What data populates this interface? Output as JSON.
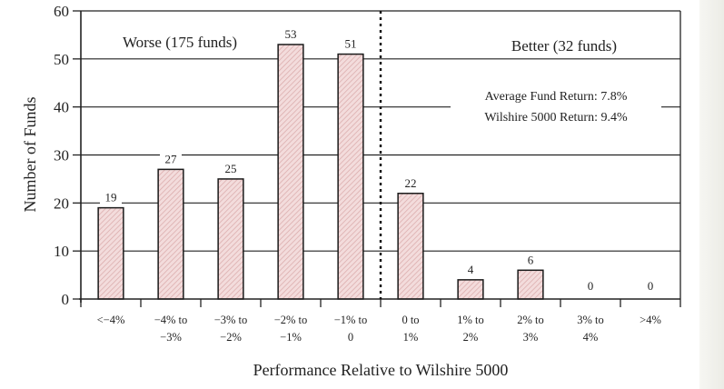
{
  "chart_data": {
    "type": "bar",
    "title": "",
    "xlabel": "Performance Relative to Wilshire 5000",
    "ylabel": "Number of Funds",
    "ylim": [
      0,
      60
    ],
    "yticks": [
      "0",
      "10",
      "20",
      "30",
      "40",
      "50",
      "60"
    ],
    "ytick_values": [
      0,
      10,
      20,
      30,
      40,
      50,
      60
    ],
    "grid": true,
    "categories": [
      [
        "<−4%"
      ],
      [
        "−4% to",
        "−3%"
      ],
      [
        "−3% to",
        "−2%"
      ],
      [
        "−2% to",
        "−1%"
      ],
      [
        "−1% to",
        "0"
      ],
      [
        "0 to",
        "1%"
      ],
      [
        "1% to",
        "2%"
      ],
      [
        "2% to",
        "3%"
      ],
      [
        "3% to",
        "4%"
      ],
      [
        ">4%"
      ]
    ],
    "values": [
      19,
      27,
      25,
      53,
      51,
      22,
      4,
      6,
      0,
      0
    ],
    "data_labels": [
      "19",
      "27",
      "25",
      "53",
      "51",
      "22",
      "4",
      "6",
      "0",
      "0"
    ],
    "divider_after_category_index": 4,
    "annotations": {
      "worse": "Worse (175 funds)",
      "better": "Better (32 funds)",
      "avg_return": "Average Fund Return: 7.8%",
      "wilshire_return": "Wilshire 5000 Return: 9.4%"
    },
    "colors": {
      "bar_fill": "#f3dcdc",
      "bar_hatch": "#d9a8a8",
      "bar_stroke": "#1a1a1a",
      "grid": "#222222"
    }
  }
}
